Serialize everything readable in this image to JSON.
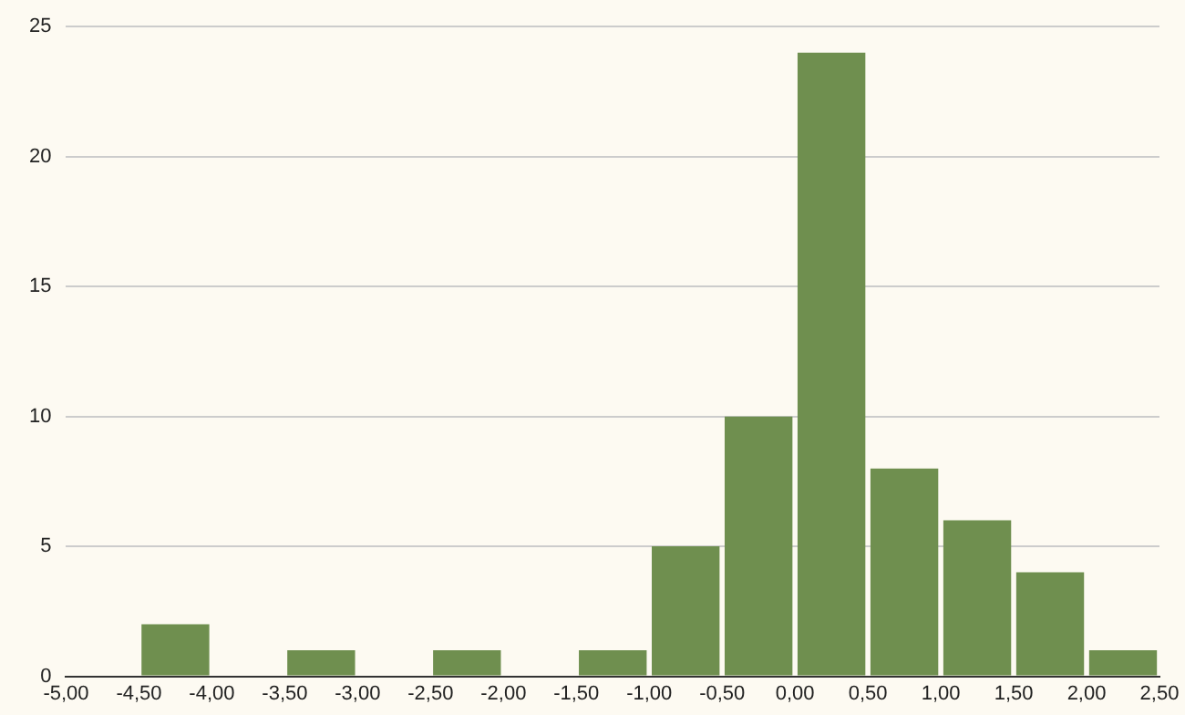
{
  "chart_data": {
    "type": "histogram",
    "bins": [
      -5,
      -4.5,
      -4,
      -3.5,
      -3,
      -2.5,
      -2,
      -1.5,
      -1,
      -0.5,
      0,
      0.5,
      1,
      1.5,
      2,
      2.5
    ],
    "values": [
      0,
      2,
      0,
      1,
      0,
      1,
      0,
      1,
      5,
      10,
      24,
      8,
      6,
      4,
      1
    ],
    "color": "#6f8f4f",
    "xlim": [
      -5,
      2.5
    ],
    "xticks": [
      {
        "value": -5,
        "label": "-5,00"
      },
      {
        "value": -4.5,
        "label": "-4,50"
      },
      {
        "value": -4,
        "label": "-4,00"
      },
      {
        "value": -3.5,
        "label": "-3,50"
      },
      {
        "value": -3,
        "label": "-3,00"
      },
      {
        "value": -2.5,
        "label": "-2,50"
      },
      {
        "value": -2,
        "label": "-2,00"
      },
      {
        "value": -1.5,
        "label": "-1,50"
      },
      {
        "value": -1,
        "label": "-1,00"
      },
      {
        "value": -0.5,
        "label": "-0,50"
      },
      {
        "value": 0,
        "label": "0,00"
      },
      {
        "value": 0.5,
        "label": "0,50"
      },
      {
        "value": 1,
        "label": "1,00"
      },
      {
        "value": 1.5,
        "label": "1,50"
      },
      {
        "value": 2,
        "label": "2,00"
      },
      {
        "value": 2.5,
        "label": "2,50"
      }
    ],
    "ylim": [
      0,
      25
    ],
    "yticks": [
      0,
      5,
      10,
      15,
      20,
      25
    ],
    "grid": "y"
  }
}
